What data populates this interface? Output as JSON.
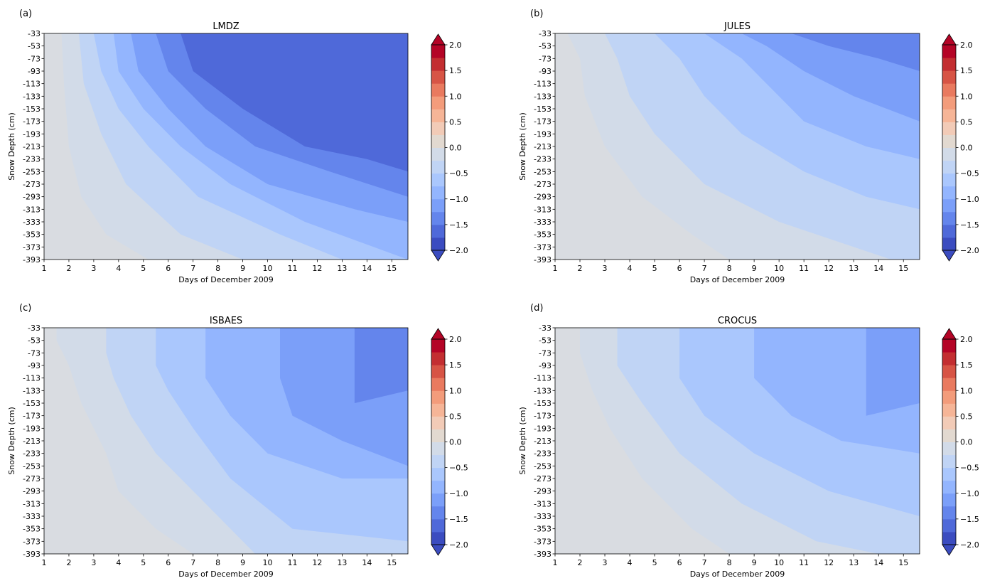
{
  "chart_data": [
    {
      "type": "heatmap",
      "panel_label": "(a)",
      "title": "LMDZ",
      "xlabel": "Days of December 2009",
      "ylabel": "Snow Depth (cm)",
      "x_ticks": [
        "1",
        "2",
        "3",
        "4",
        "5",
        "6",
        "7",
        "8",
        "9",
        "10",
        "11",
        "12",
        "13",
        "14",
        "15"
      ],
      "y_ticks": [
        "-33",
        "-53",
        "-73",
        "-93",
        "-113",
        "-133",
        "-153",
        "-173",
        "-193",
        "-213",
        "-233",
        "-253",
        "-273",
        "-293",
        "-313",
        "-333",
        "-353",
        "-373",
        "-393"
      ],
      "xlim": [
        1,
        15.65
      ],
      "ylim": [
        -393,
        -33
      ],
      "contours": [
        {
          "level": -0.25,
          "boundary": [
            [
              1.7,
              -33
            ],
            [
              1.8,
              -113
            ],
            [
              2.0,
              -213
            ],
            [
              2.5,
              -293
            ],
            [
              3.5,
              -353
            ],
            [
              5.2,
              -393
            ]
          ]
        },
        {
          "level": -0.5,
          "boundary": [
            [
              2.4,
              -33
            ],
            [
              2.6,
              -113
            ],
            [
              3.3,
              -193
            ],
            [
              4.3,
              -273
            ],
            [
              6.5,
              -353
            ],
            [
              9.0,
              -393
            ]
          ]
        },
        {
          "level": -0.75,
          "boundary": [
            [
              3.0,
              -33
            ],
            [
              3.3,
              -93
            ],
            [
              4.0,
              -153
            ],
            [
              5.2,
              -213
            ],
            [
              7.2,
              -293
            ],
            [
              10.5,
              -353
            ],
            [
              13.0,
              -393
            ]
          ]
        },
        {
          "level": -1.0,
          "boundary": [
            [
              3.8,
              -33
            ],
            [
              4.0,
              -93
            ],
            [
              5.0,
              -153
            ],
            [
              6.5,
              -213
            ],
            [
              8.5,
              -273
            ],
            [
              11.5,
              -333
            ],
            [
              15.65,
              -393
            ]
          ]
        },
        {
          "level": -1.25,
          "boundary": [
            [
              4.5,
              -33
            ],
            [
              4.8,
              -93
            ],
            [
              6.0,
              -153
            ],
            [
              7.5,
              -213
            ],
            [
              10.0,
              -273
            ],
            [
              13.5,
              -313
            ],
            [
              15.65,
              -333
            ]
          ]
        },
        {
          "level": -1.5,
          "boundary": [
            [
              5.5,
              -33
            ],
            [
              6.0,
              -93
            ],
            [
              7.5,
              -153
            ],
            [
              9.5,
              -213
            ],
            [
              12.5,
              -253
            ],
            [
              15.65,
              -293
            ]
          ]
        },
        {
          "level": -1.75,
          "boundary": [
            [
              6.5,
              -33
            ],
            [
              7.0,
              -93
            ],
            [
              9.0,
              -153
            ],
            [
              11.5,
              -213
            ],
            [
              14.0,
              -233
            ],
            [
              15.65,
              -253
            ]
          ]
        }
      ]
    },
    {
      "type": "heatmap",
      "panel_label": "(b)",
      "title": "JULES",
      "xlabel": "Days of December 2009",
      "ylabel": "Snow Depth (cm)",
      "x_ticks": [
        "1",
        "2",
        "3",
        "4",
        "5",
        "6",
        "7",
        "8",
        "9",
        "10",
        "11",
        "12",
        "13",
        "14",
        "15"
      ],
      "y_ticks": [
        "-33",
        "-53",
        "-73",
        "-93",
        "-113",
        "-133",
        "-153",
        "-173",
        "-193",
        "-213",
        "-233",
        "-253",
        "-273",
        "-293",
        "-313",
        "-333",
        "-353",
        "-373",
        "-393"
      ],
      "xlim": [
        1,
        15.65
      ],
      "ylim": [
        -393,
        -33
      ],
      "contours": [
        {
          "level": -0.25,
          "boundary": [
            [
              1.5,
              -33
            ],
            [
              2.0,
              -73
            ],
            [
              2.2,
              -133
            ],
            [
              3.0,
              -213
            ],
            [
              4.5,
              -293
            ],
            [
              6.5,
              -353
            ],
            [
              8.0,
              -393
            ]
          ]
        },
        {
          "level": -0.5,
          "boundary": [
            [
              3.0,
              -33
            ],
            [
              3.5,
              -73
            ],
            [
              4.0,
              -133
            ],
            [
              5.0,
              -193
            ],
            [
              7.0,
              -273
            ],
            [
              10.0,
              -333
            ],
            [
              14.5,
              -393
            ]
          ]
        },
        {
          "level": -0.75,
          "boundary": [
            [
              5.0,
              -33
            ],
            [
              6.0,
              -73
            ],
            [
              7.0,
              -133
            ],
            [
              8.5,
              -193
            ],
            [
              11.0,
              -253
            ],
            [
              13.5,
              -293
            ],
            [
              15.65,
              -313
            ]
          ]
        },
        {
          "level": -1.0,
          "boundary": [
            [
              7.0,
              -33
            ],
            [
              8.5,
              -73
            ],
            [
              9.5,
              -113
            ],
            [
              11.0,
              -173
            ],
            [
              13.5,
              -213
            ],
            [
              15.65,
              -233
            ]
          ]
        },
        {
          "level": -1.25,
          "boundary": [
            [
              8.5,
              -33
            ],
            [
              9.5,
              -53
            ],
            [
              11.0,
              -93
            ],
            [
              13.0,
              -133
            ],
            [
              15.65,
              -173
            ]
          ]
        },
        {
          "level": -1.5,
          "boundary": [
            [
              10.5,
              -33
            ],
            [
              12.0,
              -53
            ],
            [
              14.0,
              -73
            ],
            [
              15.65,
              -93
            ]
          ]
        }
      ]
    },
    {
      "type": "heatmap",
      "panel_label": "(c)",
      "title": "ISBAES",
      "xlabel": "Days of December 2009",
      "ylabel": "Snow Depth (cm)",
      "x_ticks": [
        "1",
        "2",
        "3",
        "4",
        "5",
        "6",
        "7",
        "8",
        "9",
        "10",
        "11",
        "12",
        "13",
        "14",
        "15"
      ],
      "y_ticks": [
        "-33",
        "-53",
        "-73",
        "-93",
        "-113",
        "-133",
        "-153",
        "-173",
        "-193",
        "-213",
        "-233",
        "-253",
        "-273",
        "-293",
        "-313",
        "-333",
        "-353",
        "-373",
        "-393"
      ],
      "xlim": [
        1,
        15.65
      ],
      "ylim": [
        -393,
        -33
      ],
      "contours": [
        {
          "level": -0.25,
          "boundary": [
            [
              1.5,
              -53
            ],
            [
              2.0,
              -93
            ],
            [
              2.5,
              -153
            ],
            [
              3.5,
              -233
            ],
            [
              4.0,
              -293
            ],
            [
              5.5,
              -353
            ],
            [
              7.0,
              -393
            ]
          ]
        },
        {
          "level": -0.5,
          "boundary": [
            [
              3.5,
              -73
            ],
            [
              3.8,
              -113
            ],
            [
              4.5,
              -173
            ],
            [
              5.5,
              -233
            ],
            [
              7.5,
              -313
            ],
            [
              9.5,
              -393
            ]
          ]
        },
        {
          "level": -0.75,
          "boundary": [
            [
              5.5,
              -93
            ],
            [
              6.0,
              -133
            ],
            [
              7.0,
              -193
            ],
            [
              8.5,
              -273
            ],
            [
              11.0,
              -353
            ],
            [
              15.65,
              -373
            ]
          ]
        },
        {
          "level": -1.0,
          "boundary": [
            [
              7.5,
              -113
            ],
            [
              8.5,
              -173
            ],
            [
              10.0,
              -233
            ],
            [
              13.0,
              -273
            ],
            [
              15.65,
              -273
            ]
          ]
        },
        {
          "level": -1.25,
          "boundary": [
            [
              10.5,
              -113
            ],
            [
              11.0,
              -173
            ],
            [
              13.0,
              -213
            ],
            [
              15.65,
              -253
            ]
          ]
        },
        {
          "level": -1.5,
          "boundary": [
            [
              13.5,
              -153
            ],
            [
              15.65,
              -133
            ],
            [
              15.65,
              -193
            ]
          ]
        }
      ]
    },
    {
      "type": "heatmap",
      "panel_label": "(d)",
      "title": "CROCUS",
      "xlabel": "Days of December 2009",
      "ylabel": "Snow Depth (cm)",
      "x_ticks": [
        "1",
        "2",
        "3",
        "4",
        "5",
        "6",
        "7",
        "8",
        "9",
        "10",
        "11",
        "12",
        "13",
        "14",
        "15"
      ],
      "y_ticks": [
        "-33",
        "-53",
        "-73",
        "-93",
        "-113",
        "-133",
        "-153",
        "-173",
        "-193",
        "-213",
        "-233",
        "-253",
        "-273",
        "-293",
        "-313",
        "-333",
        "-353",
        "-373",
        "-393"
      ],
      "xlim": [
        1,
        15.65
      ],
      "ylim": [
        -393,
        -33
      ],
      "contours": [
        {
          "level": -0.25,
          "boundary": [
            [
              2.0,
              -73
            ],
            [
              2.5,
              -133
            ],
            [
              3.2,
              -193
            ],
            [
              4.5,
              -273
            ],
            [
              6.5,
              -353
            ],
            [
              8.0,
              -393
            ]
          ]
        },
        {
          "level": -0.5,
          "boundary": [
            [
              3.5,
              -93
            ],
            [
              4.5,
              -153
            ],
            [
              6.0,
              -233
            ],
            [
              8.5,
              -313
            ],
            [
              11.5,
              -373
            ],
            [
              14.0,
              -393
            ]
          ]
        },
        {
          "level": -0.75,
          "boundary": [
            [
              6.0,
              -113
            ],
            [
              7.0,
              -173
            ],
            [
              9.0,
              -233
            ],
            [
              12.0,
              -293
            ],
            [
              15.65,
              -333
            ]
          ]
        },
        {
          "level": -1.0,
          "boundary": [
            [
              9.0,
              -113
            ],
            [
              10.5,
              -173
            ],
            [
              12.5,
              -213
            ],
            [
              15.65,
              -233
            ]
          ]
        },
        {
          "level": -1.25,
          "boundary": [
            [
              13.5,
              -173
            ],
            [
              15.65,
              -153
            ],
            [
              15.65,
              -193
            ]
          ]
        }
      ]
    }
  ],
  "colorbar": {
    "ticks": [
      "2.0",
      "1.5",
      "1.0",
      "0.5",
      "0.0",
      "−0.5",
      "−1.0",
      "−1.5",
      "−2.0"
    ],
    "range": [
      -2.0,
      2.0
    ],
    "extend": "both",
    "colors": [
      "#3b4cc0",
      "#4f69d9",
      "#6485ec",
      "#7b9ff9",
      "#93b5fe",
      "#aac7fd",
      "#c0d4f5",
      "#d2dbe8",
      "#e2d9d0",
      "#f2cbb7",
      "#f6b597",
      "#f39c7b",
      "#e97a5f",
      "#d75445",
      "#c32e31",
      "#b40426"
    ]
  }
}
